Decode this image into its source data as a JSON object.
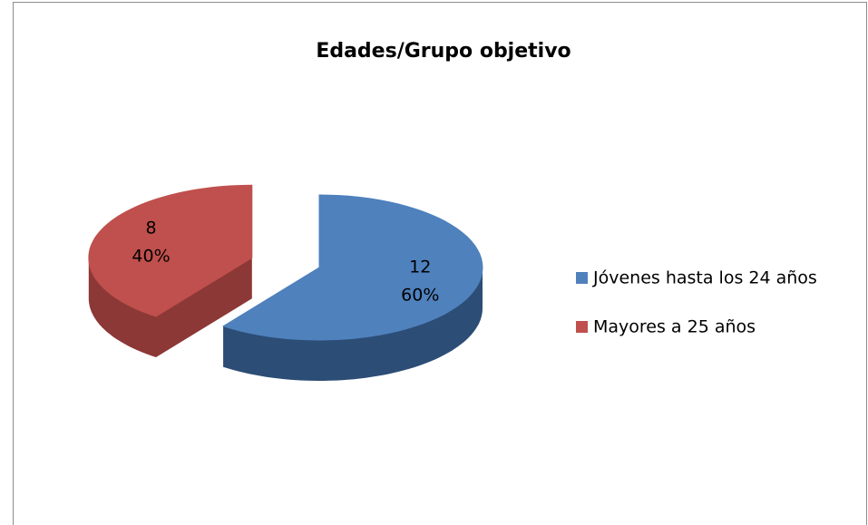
{
  "chart_data": {
    "type": "pie",
    "title": "Edades/Grupo objetivo",
    "categories": [
      "Jóvenes hasta los 24 años",
      "Mayores a 25 años"
    ],
    "values": [
      12,
      8
    ],
    "percent_values": [
      60,
      40
    ],
    "percent_labels": [
      "60%",
      "40%"
    ],
    "colors": [
      "#4f81bd",
      "#c0504d"
    ],
    "side_colors": [
      "#2c4d75",
      "#8c3836"
    ],
    "explode": [
      0,
      1
    ],
    "legend": "right"
  }
}
